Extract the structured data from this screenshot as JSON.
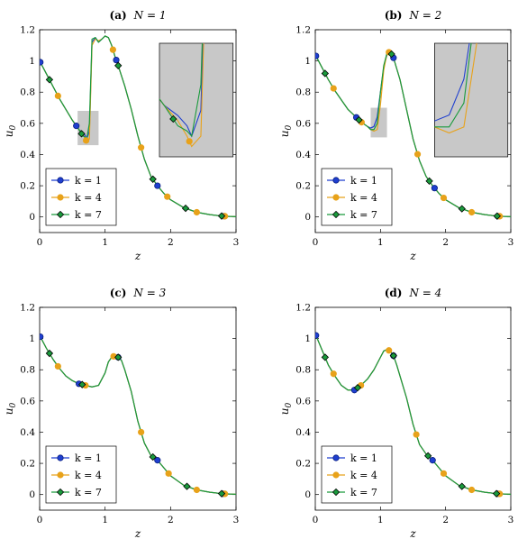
{
  "chart_data": [
    {
      "type": "line",
      "title": "(a)  N = 1",
      "title_bold": "(a)",
      "title_rest": "N = 1",
      "xlabel": "z",
      "ylabel": "u0",
      "xlim": [
        0,
        3
      ],
      "ylim": [
        -0.1,
        1.2
      ],
      "xticks": [
        0,
        1,
        2,
        3
      ],
      "yticks": [
        0,
        0.2,
        0.4,
        0.6,
        0.8,
        1,
        1.2
      ],
      "ytick_labels": [
        "0",
        "0.2",
        "0.4",
        "0.6",
        "0.8",
        "1",
        "1.2"
      ],
      "legend_position": "bottom-left",
      "inset": {
        "shown": true,
        "zoom_x": [
          0.58,
          0.9
        ],
        "zoom_y": [
          0.46,
          0.68
        ]
      },
      "series": [
        {
          "name": "k = 1",
          "color": "#1f3fcf",
          "marker": "circle",
          "x": [
            0,
            0.1,
            0.2,
            0.3,
            0.4,
            0.5,
            0.6,
            0.66,
            0.7,
            0.72,
            0.76,
            0.8,
            0.85,
            0.9,
            0.95,
            1.0,
            1.05,
            1.1,
            1.15,
            1.2,
            1.3,
            1.4,
            1.5,
            1.6,
            1.7,
            1.8,
            1.9,
            2.0,
            2.2,
            2.4,
            2.6,
            2.8,
            3.0
          ],
          "y": [
            1.0,
            0.92,
            0.84,
            0.76,
            0.69,
            0.62,
            0.56,
            0.54,
            0.52,
            0.5,
            0.55,
            1.12,
            1.15,
            1.12,
            1.14,
            1.16,
            1.15,
            1.1,
            1.03,
            0.97,
            0.84,
            0.69,
            0.52,
            0.37,
            0.26,
            0.2,
            0.15,
            0.11,
            0.06,
            0.03,
            0.015,
            0.005,
            0.002
          ],
          "markers_x": [
            0.01,
            0.56,
            1.17,
            1.8,
            2.82
          ]
        },
        {
          "name": "k = 4",
          "color": "#e8a21a",
          "marker": "circle",
          "x": [
            0,
            0.1,
            0.2,
            0.3,
            0.4,
            0.5,
            0.6,
            0.66,
            0.7,
            0.72,
            0.76,
            0.8,
            0.85,
            0.9,
            0.95,
            1.0,
            1.05,
            1.1,
            1.15,
            1.2,
            1.3,
            1.4,
            1.5,
            1.6,
            1.7,
            1.8,
            1.9,
            2.0,
            2.2,
            2.4,
            2.6,
            2.8,
            3.0
          ],
          "y": [
            1.0,
            0.92,
            0.84,
            0.76,
            0.69,
            0.62,
            0.56,
            0.53,
            0.5,
            0.48,
            0.5,
            1.1,
            1.14,
            1.13,
            1.14,
            1.16,
            1.15,
            1.1,
            1.03,
            0.97,
            0.84,
            0.69,
            0.52,
            0.37,
            0.26,
            0.2,
            0.15,
            0.11,
            0.06,
            0.03,
            0.015,
            0.005,
            0.002
          ],
          "markers_x": [
            0.28,
            0.71,
            1.12,
            1.55,
            1.95,
            2.4,
            2.83
          ]
        },
        {
          "name": "k = 7",
          "color": "#1a9a3c",
          "marker": "diamond",
          "x": [
            0,
            0.1,
            0.2,
            0.3,
            0.4,
            0.5,
            0.6,
            0.66,
            0.7,
            0.72,
            0.76,
            0.8,
            0.85,
            0.9,
            0.95,
            1.0,
            1.05,
            1.1,
            1.15,
            1.2,
            1.3,
            1.4,
            1.5,
            1.6,
            1.7,
            1.8,
            1.9,
            2.0,
            2.2,
            2.4,
            2.6,
            2.8,
            3.0
          ],
          "y": [
            1.0,
            0.92,
            0.84,
            0.76,
            0.69,
            0.62,
            0.56,
            0.52,
            0.51,
            0.5,
            0.6,
            1.14,
            1.15,
            1.12,
            1.14,
            1.16,
            1.15,
            1.1,
            1.03,
            0.97,
            0.84,
            0.69,
            0.52,
            0.37,
            0.26,
            0.2,
            0.15,
            0.11,
            0.06,
            0.03,
            0.015,
            0.005,
            0.002
          ],
          "markers_x": [
            0.15,
            0.64,
            1.2,
            1.73,
            2.23,
            2.78
          ]
        }
      ]
    },
    {
      "type": "line",
      "title": "(b)  N = 2",
      "title_bold": "(b)",
      "title_rest": "N = 2",
      "xlabel": "z",
      "ylabel": "u0",
      "xlim": [
        0,
        3
      ],
      "ylim": [
        -0.1,
        1.2
      ],
      "xticks": [
        0,
        1,
        2,
        3
      ],
      "yticks": [
        0,
        0.2,
        0.4,
        0.6,
        0.8,
        1,
        1.2
      ],
      "ytick_labels": [
        "0",
        "0.2",
        "0.4",
        "0.6",
        "0.8",
        "1",
        "1.2"
      ],
      "legend_position": "bottom-left",
      "inset": {
        "shown": true,
        "zoom_x": [
          0.85,
          1.1
        ],
        "zoom_y": [
          0.51,
          0.7
        ]
      },
      "series": [
        {
          "name": "k = 1",
          "color": "#1f3fcf",
          "marker": "circle",
          "x": [
            0,
            0.1,
            0.2,
            0.3,
            0.4,
            0.5,
            0.6,
            0.7,
            0.8,
            0.85,
            0.9,
            0.95,
            1.0,
            1.05,
            1.1,
            1.15,
            1.2,
            1.3,
            1.4,
            1.5,
            1.6,
            1.7,
            1.8,
            1.9,
            2.0,
            2.2,
            2.4,
            2.6,
            2.8,
            3.0
          ],
          "y": [
            1.04,
            0.96,
            0.88,
            0.81,
            0.75,
            0.69,
            0.65,
            0.61,
            0.58,
            0.57,
            0.58,
            0.64,
            0.8,
            0.96,
            1.04,
            1.06,
            1.02,
            0.88,
            0.69,
            0.5,
            0.36,
            0.26,
            0.2,
            0.15,
            0.11,
            0.06,
            0.03,
            0.015,
            0.005,
            0.002
          ],
          "markers_x": [
            0.01,
            0.63,
            1.2,
            1.83,
            2.8
          ]
        },
        {
          "name": "k = 4",
          "color": "#e8a21a",
          "marker": "circle",
          "x": [
            0,
            0.1,
            0.2,
            0.3,
            0.4,
            0.5,
            0.6,
            0.7,
            0.8,
            0.85,
            0.9,
            0.95,
            1.0,
            1.05,
            1.1,
            1.15,
            1.2,
            1.3,
            1.4,
            1.5,
            1.6,
            1.7,
            1.8,
            1.9,
            2.0,
            2.2,
            2.4,
            2.6,
            2.8,
            3.0
          ],
          "y": [
            1.04,
            0.96,
            0.88,
            0.81,
            0.75,
            0.69,
            0.65,
            0.61,
            0.58,
            0.56,
            0.55,
            0.56,
            0.72,
            0.94,
            1.05,
            1.06,
            1.02,
            0.88,
            0.69,
            0.5,
            0.36,
            0.26,
            0.2,
            0.15,
            0.11,
            0.06,
            0.03,
            0.015,
            0.005,
            0.002
          ],
          "markers_x": [
            0.28,
            0.71,
            1.13,
            1.57,
            1.97,
            2.4,
            2.83
          ]
        },
        {
          "name": "k = 7",
          "color": "#1a9a3c",
          "marker": "diamond",
          "x": [
            0,
            0.1,
            0.2,
            0.3,
            0.4,
            0.5,
            0.6,
            0.7,
            0.8,
            0.85,
            0.9,
            0.95,
            1.0,
            1.05,
            1.1,
            1.15,
            1.2,
            1.3,
            1.4,
            1.5,
            1.6,
            1.7,
            1.8,
            1.9,
            2.0,
            2.2,
            2.4,
            2.6,
            2.8,
            3.0
          ],
          "y": [
            1.04,
            0.96,
            0.88,
            0.81,
            0.75,
            0.69,
            0.65,
            0.61,
            0.58,
            0.56,
            0.56,
            0.6,
            0.8,
            0.97,
            1.05,
            1.06,
            1.02,
            0.88,
            0.69,
            0.5,
            0.36,
            0.26,
            0.2,
            0.15,
            0.11,
            0.06,
            0.03,
            0.015,
            0.005,
            0.002
          ],
          "markers_x": [
            0.15,
            0.67,
            1.17,
            1.75,
            2.25,
            2.79
          ]
        }
      ]
    },
    {
      "type": "line",
      "title": "(c)  N = 3",
      "title_bold": "(c)",
      "title_rest": "N = 3",
      "xlabel": "z",
      "ylabel": "u0",
      "xlim": [
        0,
        3
      ],
      "ylim": [
        -0.1,
        1.2
      ],
      "xticks": [
        0,
        1,
        2,
        3
      ],
      "yticks": [
        0,
        0.2,
        0.4,
        0.6,
        0.8,
        1,
        1.2
      ],
      "ytick_labels": [
        "0",
        "0.2",
        "0.4",
        "0.6",
        "0.8",
        "1",
        "1.2"
      ],
      "legend_position": "bottom-left",
      "inset": {
        "shown": false
      },
      "series": [
        {
          "name": "k = 1",
          "color": "#1f3fcf",
          "marker": "circle",
          "x": [
            0,
            0.1,
            0.2,
            0.3,
            0.4,
            0.5,
            0.6,
            0.7,
            0.8,
            0.9,
            1.0,
            1.05,
            1.1,
            1.15,
            1.2,
            1.25,
            1.3,
            1.4,
            1.5,
            1.6,
            1.7,
            1.8,
            1.9,
            2.0,
            2.2,
            2.4,
            2.6,
            2.8,
            3.0
          ],
          "y": [
            1.02,
            0.94,
            0.87,
            0.81,
            0.76,
            0.73,
            0.71,
            0.7,
            0.69,
            0.7,
            0.78,
            0.85,
            0.88,
            0.89,
            0.88,
            0.86,
            0.8,
            0.66,
            0.47,
            0.33,
            0.25,
            0.22,
            0.17,
            0.12,
            0.06,
            0.03,
            0.015,
            0.005,
            0.002
          ],
          "markers_x": [
            0.01,
            0.6,
            1.2,
            1.8,
            2.8
          ]
        },
        {
          "name": "k = 4",
          "color": "#e8a21a",
          "marker": "circle",
          "x": [
            0,
            0.1,
            0.2,
            0.3,
            0.4,
            0.5,
            0.6,
            0.7,
            0.8,
            0.9,
            1.0,
            1.05,
            1.1,
            1.15,
            1.2,
            1.25,
            1.3,
            1.4,
            1.5,
            1.6,
            1.7,
            1.8,
            1.9,
            2.0,
            2.2,
            2.4,
            2.6,
            2.8,
            3.0
          ],
          "y": [
            1.02,
            0.94,
            0.87,
            0.81,
            0.76,
            0.73,
            0.71,
            0.7,
            0.69,
            0.7,
            0.78,
            0.85,
            0.88,
            0.89,
            0.88,
            0.86,
            0.8,
            0.66,
            0.47,
            0.33,
            0.25,
            0.22,
            0.17,
            0.12,
            0.06,
            0.03,
            0.015,
            0.005,
            0.002
          ],
          "markers_x": [
            0.28,
            0.7,
            1.13,
            1.55,
            1.97,
            2.4,
            2.83
          ]
        },
        {
          "name": "k = 7",
          "color": "#1a9a3c",
          "marker": "diamond",
          "x": [
            0,
            0.1,
            0.2,
            0.3,
            0.4,
            0.5,
            0.6,
            0.7,
            0.8,
            0.9,
            1.0,
            1.05,
            1.1,
            1.15,
            1.2,
            1.25,
            1.3,
            1.4,
            1.5,
            1.6,
            1.7,
            1.8,
            1.9,
            2.0,
            2.2,
            2.4,
            2.6,
            2.8,
            3.0
          ],
          "y": [
            1.02,
            0.94,
            0.87,
            0.81,
            0.76,
            0.73,
            0.71,
            0.7,
            0.69,
            0.7,
            0.78,
            0.85,
            0.88,
            0.89,
            0.88,
            0.86,
            0.8,
            0.66,
            0.47,
            0.33,
            0.25,
            0.22,
            0.17,
            0.12,
            0.06,
            0.03,
            0.015,
            0.005,
            0.002
          ],
          "markers_x": [
            0.15,
            0.65,
            1.2,
            1.73,
            2.25,
            2.78
          ]
        }
      ]
    },
    {
      "type": "line",
      "title": "(d)  N = 4",
      "title_bold": "(d)",
      "title_rest": "N = 4",
      "xlabel": "z",
      "ylabel": "u0",
      "xlim": [
        0,
        3
      ],
      "ylim": [
        -0.1,
        1.2
      ],
      "xticks": [
        0,
        1,
        2,
        3
      ],
      "yticks": [
        0,
        0.2,
        0.4,
        0.6,
        0.8,
        1,
        1.2
      ],
      "ytick_labels": [
        "0",
        "0.2",
        "0.4",
        "0.6",
        "0.8",
        "1",
        "1.2"
      ],
      "legend_position": "bottom-left",
      "inset": {
        "shown": false
      },
      "series": [
        {
          "name": "k = 1",
          "color": "#1f3fcf",
          "marker": "circle",
          "x": [
            0,
            0.1,
            0.2,
            0.3,
            0.4,
            0.5,
            0.6,
            0.7,
            0.8,
            0.9,
            1.0,
            1.05,
            1.1,
            1.15,
            1.2,
            1.25,
            1.3,
            1.4,
            1.5,
            1.6,
            1.7,
            1.8,
            1.9,
            2.0,
            2.2,
            2.4,
            2.6,
            2.8,
            3.0
          ],
          "y": [
            1.03,
            0.93,
            0.83,
            0.76,
            0.7,
            0.67,
            0.67,
            0.7,
            0.74,
            0.8,
            0.88,
            0.92,
            0.93,
            0.92,
            0.89,
            0.83,
            0.76,
            0.62,
            0.45,
            0.32,
            0.26,
            0.22,
            0.17,
            0.12,
            0.06,
            0.03,
            0.015,
            0.005,
            0.002
          ],
          "markers_x": [
            0.01,
            0.6,
            1.2,
            1.8,
            2.8
          ]
        },
        {
          "name": "k = 4",
          "color": "#e8a21a",
          "marker": "circle",
          "x": [
            0,
            0.1,
            0.2,
            0.3,
            0.4,
            0.5,
            0.6,
            0.7,
            0.8,
            0.9,
            1.0,
            1.05,
            1.1,
            1.15,
            1.2,
            1.25,
            1.3,
            1.4,
            1.5,
            1.6,
            1.7,
            1.8,
            1.9,
            2.0,
            2.2,
            2.4,
            2.6,
            2.8,
            3.0
          ],
          "y": [
            1.03,
            0.93,
            0.83,
            0.76,
            0.7,
            0.67,
            0.67,
            0.7,
            0.74,
            0.8,
            0.88,
            0.92,
            0.93,
            0.92,
            0.89,
            0.83,
            0.76,
            0.62,
            0.45,
            0.32,
            0.26,
            0.22,
            0.17,
            0.12,
            0.06,
            0.03,
            0.015,
            0.005,
            0.002
          ],
          "markers_x": [
            0.28,
            0.7,
            1.13,
            1.55,
            1.97,
            2.4,
            2.83
          ]
        },
        {
          "name": "k = 7",
          "color": "#1a9a3c",
          "marker": "diamond",
          "x": [
            0,
            0.1,
            0.2,
            0.3,
            0.4,
            0.5,
            0.6,
            0.7,
            0.8,
            0.9,
            1.0,
            1.05,
            1.1,
            1.15,
            1.2,
            1.25,
            1.3,
            1.4,
            1.5,
            1.6,
            1.7,
            1.8,
            1.9,
            2.0,
            2.2,
            2.4,
            2.6,
            2.8,
            3.0
          ],
          "y": [
            1.03,
            0.93,
            0.83,
            0.76,
            0.7,
            0.67,
            0.67,
            0.7,
            0.74,
            0.8,
            0.88,
            0.92,
            0.93,
            0.92,
            0.89,
            0.83,
            0.76,
            0.62,
            0.45,
            0.32,
            0.26,
            0.22,
            0.17,
            0.12,
            0.06,
            0.03,
            0.015,
            0.005,
            0.002
          ],
          "markers_x": [
            0.15,
            0.65,
            1.2,
            1.73,
            2.25,
            2.78
          ]
        }
      ]
    }
  ]
}
